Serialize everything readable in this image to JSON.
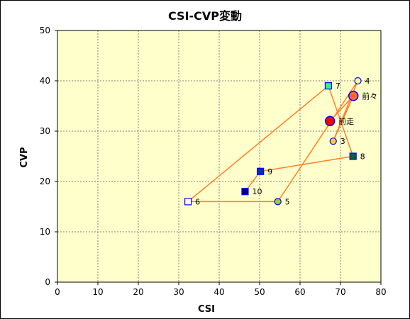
{
  "chart_data": {
    "type": "scatter",
    "title": "CSI-CVP変動",
    "xlabel": "CSI",
    "ylabel": "CVP",
    "xlim": [
      0,
      80
    ],
    "ylim": [
      0,
      50
    ],
    "xticks": [
      0,
      10,
      20,
      30,
      40,
      50,
      60,
      70,
      80
    ],
    "yticks": [
      0,
      10,
      20,
      30,
      40,
      50
    ],
    "grid": true,
    "legend": "none",
    "colors": {
      "plot_background": "#ffffcc",
      "line": "#ff7f27",
      "grid": "#7f7f7f"
    },
    "path_order": [
      "10",
      "9",
      "8",
      "7",
      "6",
      "5",
      "4",
      "3",
      "前々",
      "前走"
    ],
    "points": [
      {
        "label": "前走",
        "x": 67.4,
        "y": 32.0,
        "marker": "circle-large",
        "fill": "#ff0000",
        "stroke": "#0000ff"
      },
      {
        "label": "前々",
        "x": 73.2,
        "y": 37.0,
        "marker": "circle-large",
        "fill": "#ff6633",
        "stroke": "#0000ff"
      },
      {
        "label": "3",
        "x": 68.2,
        "y": 28.0,
        "marker": "circle",
        "fill": "#ffcc33",
        "stroke": "#0000ff"
      },
      {
        "label": "4",
        "x": 74.3,
        "y": 40.0,
        "marker": "circle",
        "fill": "#ffff99",
        "stroke": "#0000ff"
      },
      {
        "label": "5",
        "x": 54.5,
        "y": 16.0,
        "marker": "circle",
        "fill": "#99cc33",
        "stroke": "#0000ff"
      },
      {
        "label": "6",
        "x": 32.3,
        "y": 16.0,
        "marker": "square",
        "fill": "#ffffff",
        "stroke": "#0000ff"
      },
      {
        "label": "7",
        "x": 67.0,
        "y": 39.0,
        "marker": "square",
        "fill": "#33ff66",
        "stroke": "#0000ff"
      },
      {
        "label": "8",
        "x": 73.1,
        "y": 25.0,
        "marker": "square",
        "fill": "#006633",
        "stroke": "#0000ff"
      },
      {
        "label": "9",
        "x": 50.2,
        "y": 22.0,
        "marker": "square",
        "fill": "#003399",
        "stroke": "#0000ff"
      },
      {
        "label": "10",
        "x": 46.4,
        "y": 18.0,
        "marker": "square",
        "fill": "#000066",
        "stroke": "#0000ff"
      }
    ]
  }
}
